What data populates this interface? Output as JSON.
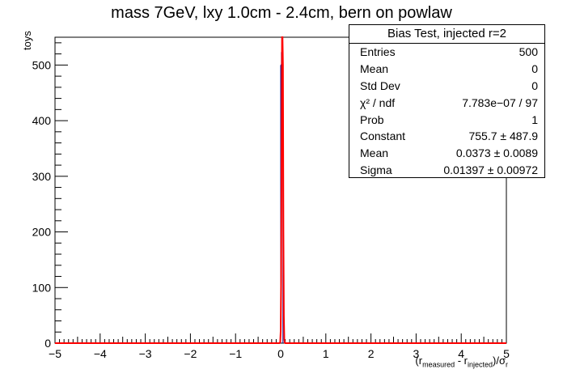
{
  "chart_data": {
    "type": "histogram",
    "title": "mass 7GeV, lxy 1.0cm - 2.4cm, bern on powlaw",
    "ylabel": "toys",
    "xlabel": {
      "prefix": "(r",
      "sub1": "measured",
      "mid": " - r",
      "sub2": "injected",
      "suffix": ")/σ",
      "sub3": "r"
    },
    "xlim": [
      -5,
      5
    ],
    "ylim": [
      0,
      550
    ],
    "x_ticks": [
      "−5",
      "−4",
      "−3",
      "−2",
      "−1",
      "0",
      "1",
      "2",
      "3",
      "4",
      "5"
    ],
    "y_ticks": [
      "0",
      "100",
      "200",
      "300",
      "400",
      "500"
    ],
    "histogram": {
      "bin_low": 0.0,
      "bin_high": 0.05,
      "count": 500,
      "color": "#00008b"
    },
    "fit": {
      "function": "gaus",
      "constant": 755.7,
      "mean": 0.0373,
      "sigma": 0.01397,
      "color": "#ff0000"
    },
    "stats": {
      "title": "Bias Test, injected r=2",
      "rows": [
        {
          "label": "Entries",
          "value": "500"
        },
        {
          "label": "Mean",
          "value": "0"
        },
        {
          "label": "Std Dev",
          "value": "0"
        },
        {
          "label": "χ² / ndf",
          "value": "7.783e−07 / 97"
        },
        {
          "label": "Prob",
          "value": "1"
        },
        {
          "label": "Constant",
          "value": "755.7 ± 487.9"
        },
        {
          "label": "Mean",
          "value": "0.0373 ± 0.0089"
        },
        {
          "label": "Sigma",
          "value": "0.01397 ± 0.00972"
        }
      ]
    }
  }
}
